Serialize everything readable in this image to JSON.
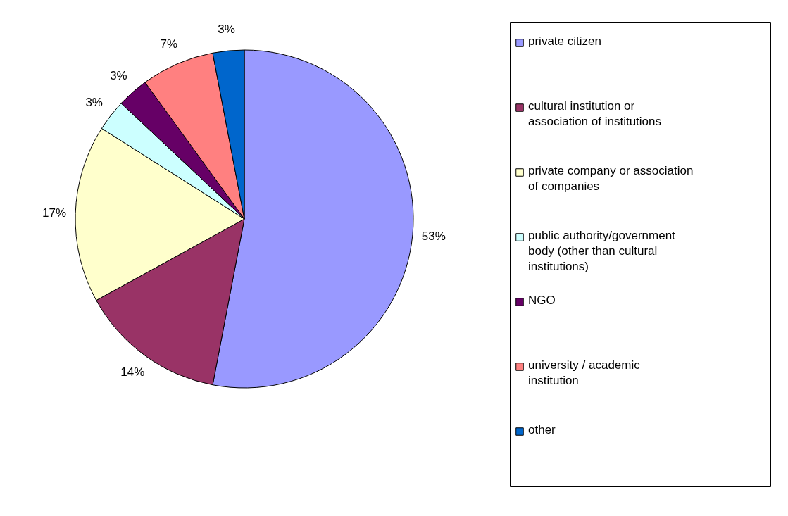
{
  "chart_data": {
    "type": "pie",
    "categories": [
      "private citizen",
      "cultural institution or association of institutions",
      "private company or association of companies",
      "public authority/government body (other than cultural institutions)",
      "NGO",
      "university / academic institution",
      "other"
    ],
    "values": [
      53,
      14,
      17,
      3,
      3,
      7,
      3
    ],
    "colors": [
      "#9999ff",
      "#993366",
      "#ffffcc",
      "#ccffff",
      "#660066",
      "#ff8080",
      "#0066cc"
    ],
    "value_labels": [
      "53%",
      "14%",
      "17%",
      "3%",
      "3%",
      "7%",
      "3%"
    ],
    "legend": "right"
  }
}
